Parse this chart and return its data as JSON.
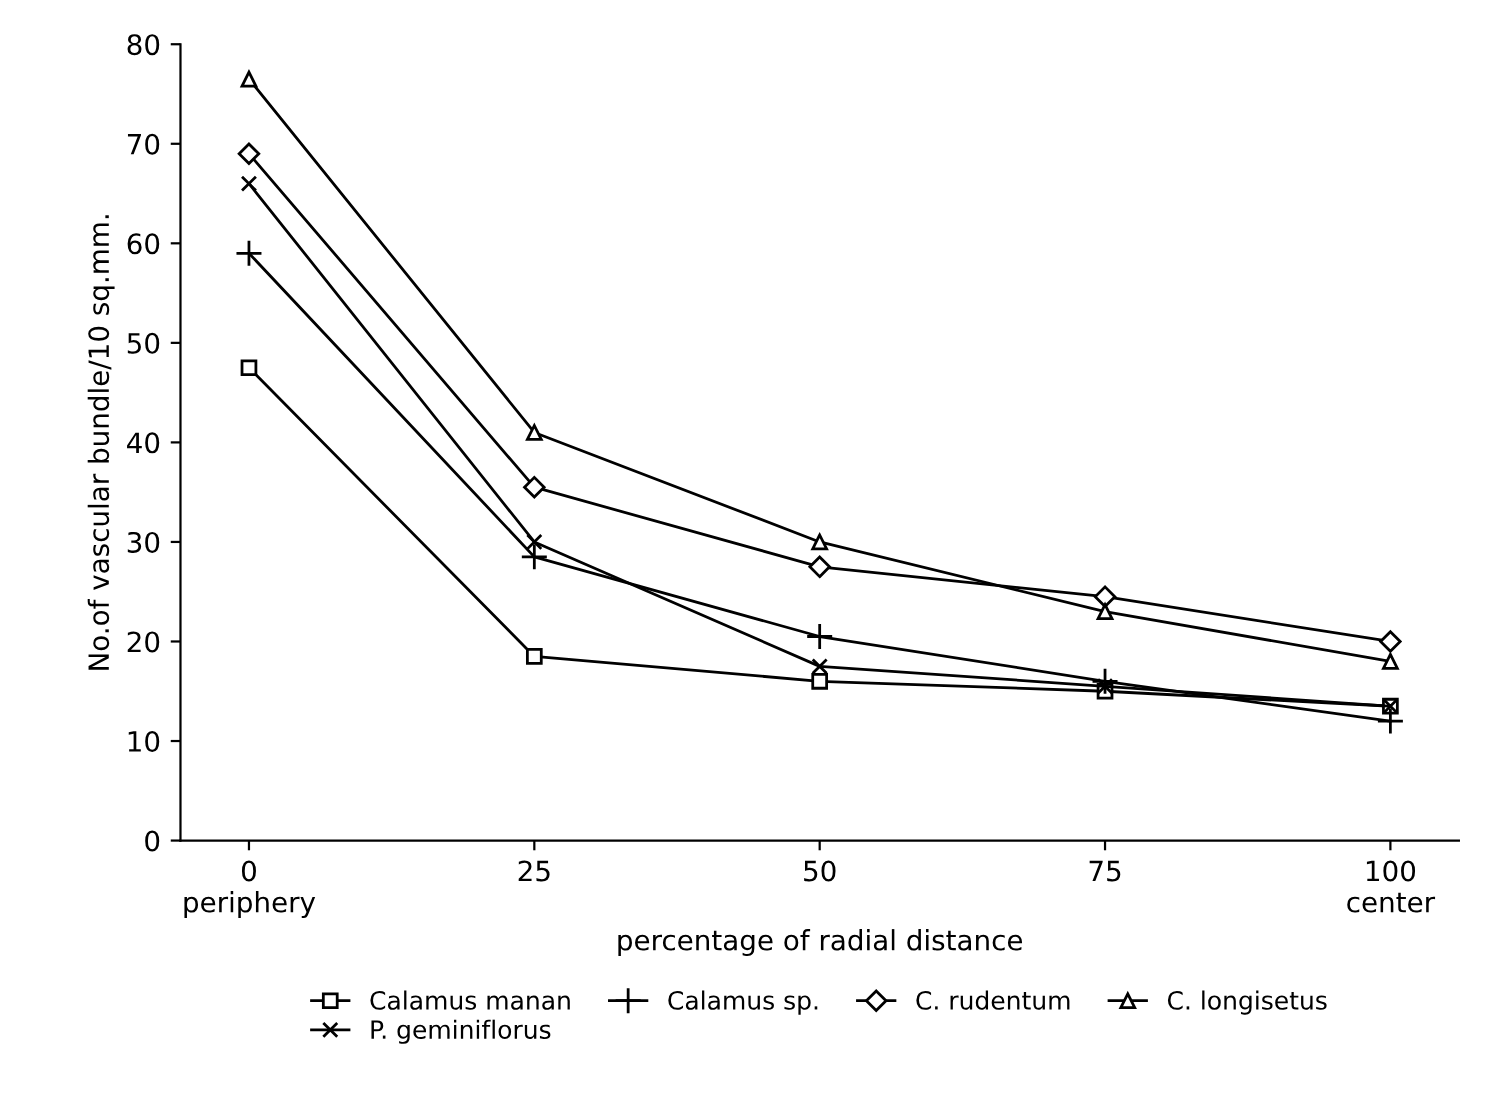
{
  "chart_data": {
    "type": "line",
    "xlabel": "percentage of radial distance",
    "ylabel": "No.of vascular bundle/10 sq.mm.",
    "x": [
      0,
      25,
      50,
      75,
      100
    ],
    "xlim": [
      -6,
      106
    ],
    "ylim": [
      0,
      80
    ],
    "xticks": [
      {
        "value": 0,
        "label": "0\nperiphery"
      },
      25,
      50,
      75,
      {
        "value": 100,
        "label": "100\ncenter"
      }
    ],
    "yticks": [
      0,
      10,
      20,
      30,
      40,
      50,
      60,
      70,
      80
    ],
    "grid": false,
    "legend": "bottom",
    "series": [
      {
        "name": "Calamus manan",
        "color": "#000000",
        "marker": "square",
        "values": [
          47.5,
          18.5,
          16,
          15,
          13.5
        ]
      },
      {
        "name": "Calamus sp.",
        "color": "#000000",
        "marker": "plus",
        "values": [
          59,
          28.5,
          20.5,
          16,
          12
        ]
      },
      {
        "name": "C. rudentum",
        "color": "#000000",
        "marker": "diamond",
        "values": [
          69,
          35.5,
          27.5,
          24.5,
          20
        ]
      },
      {
        "name": "C. longisetus",
        "color": "#000000",
        "marker": "triangle",
        "values": [
          76.5,
          41,
          30,
          23,
          18
        ]
      },
      {
        "name": "P. geminiflorus",
        "color": "#000000",
        "marker": "cross",
        "values": [
          66,
          30,
          17.5,
          15.5,
          13.5
        ]
      }
    ]
  }
}
